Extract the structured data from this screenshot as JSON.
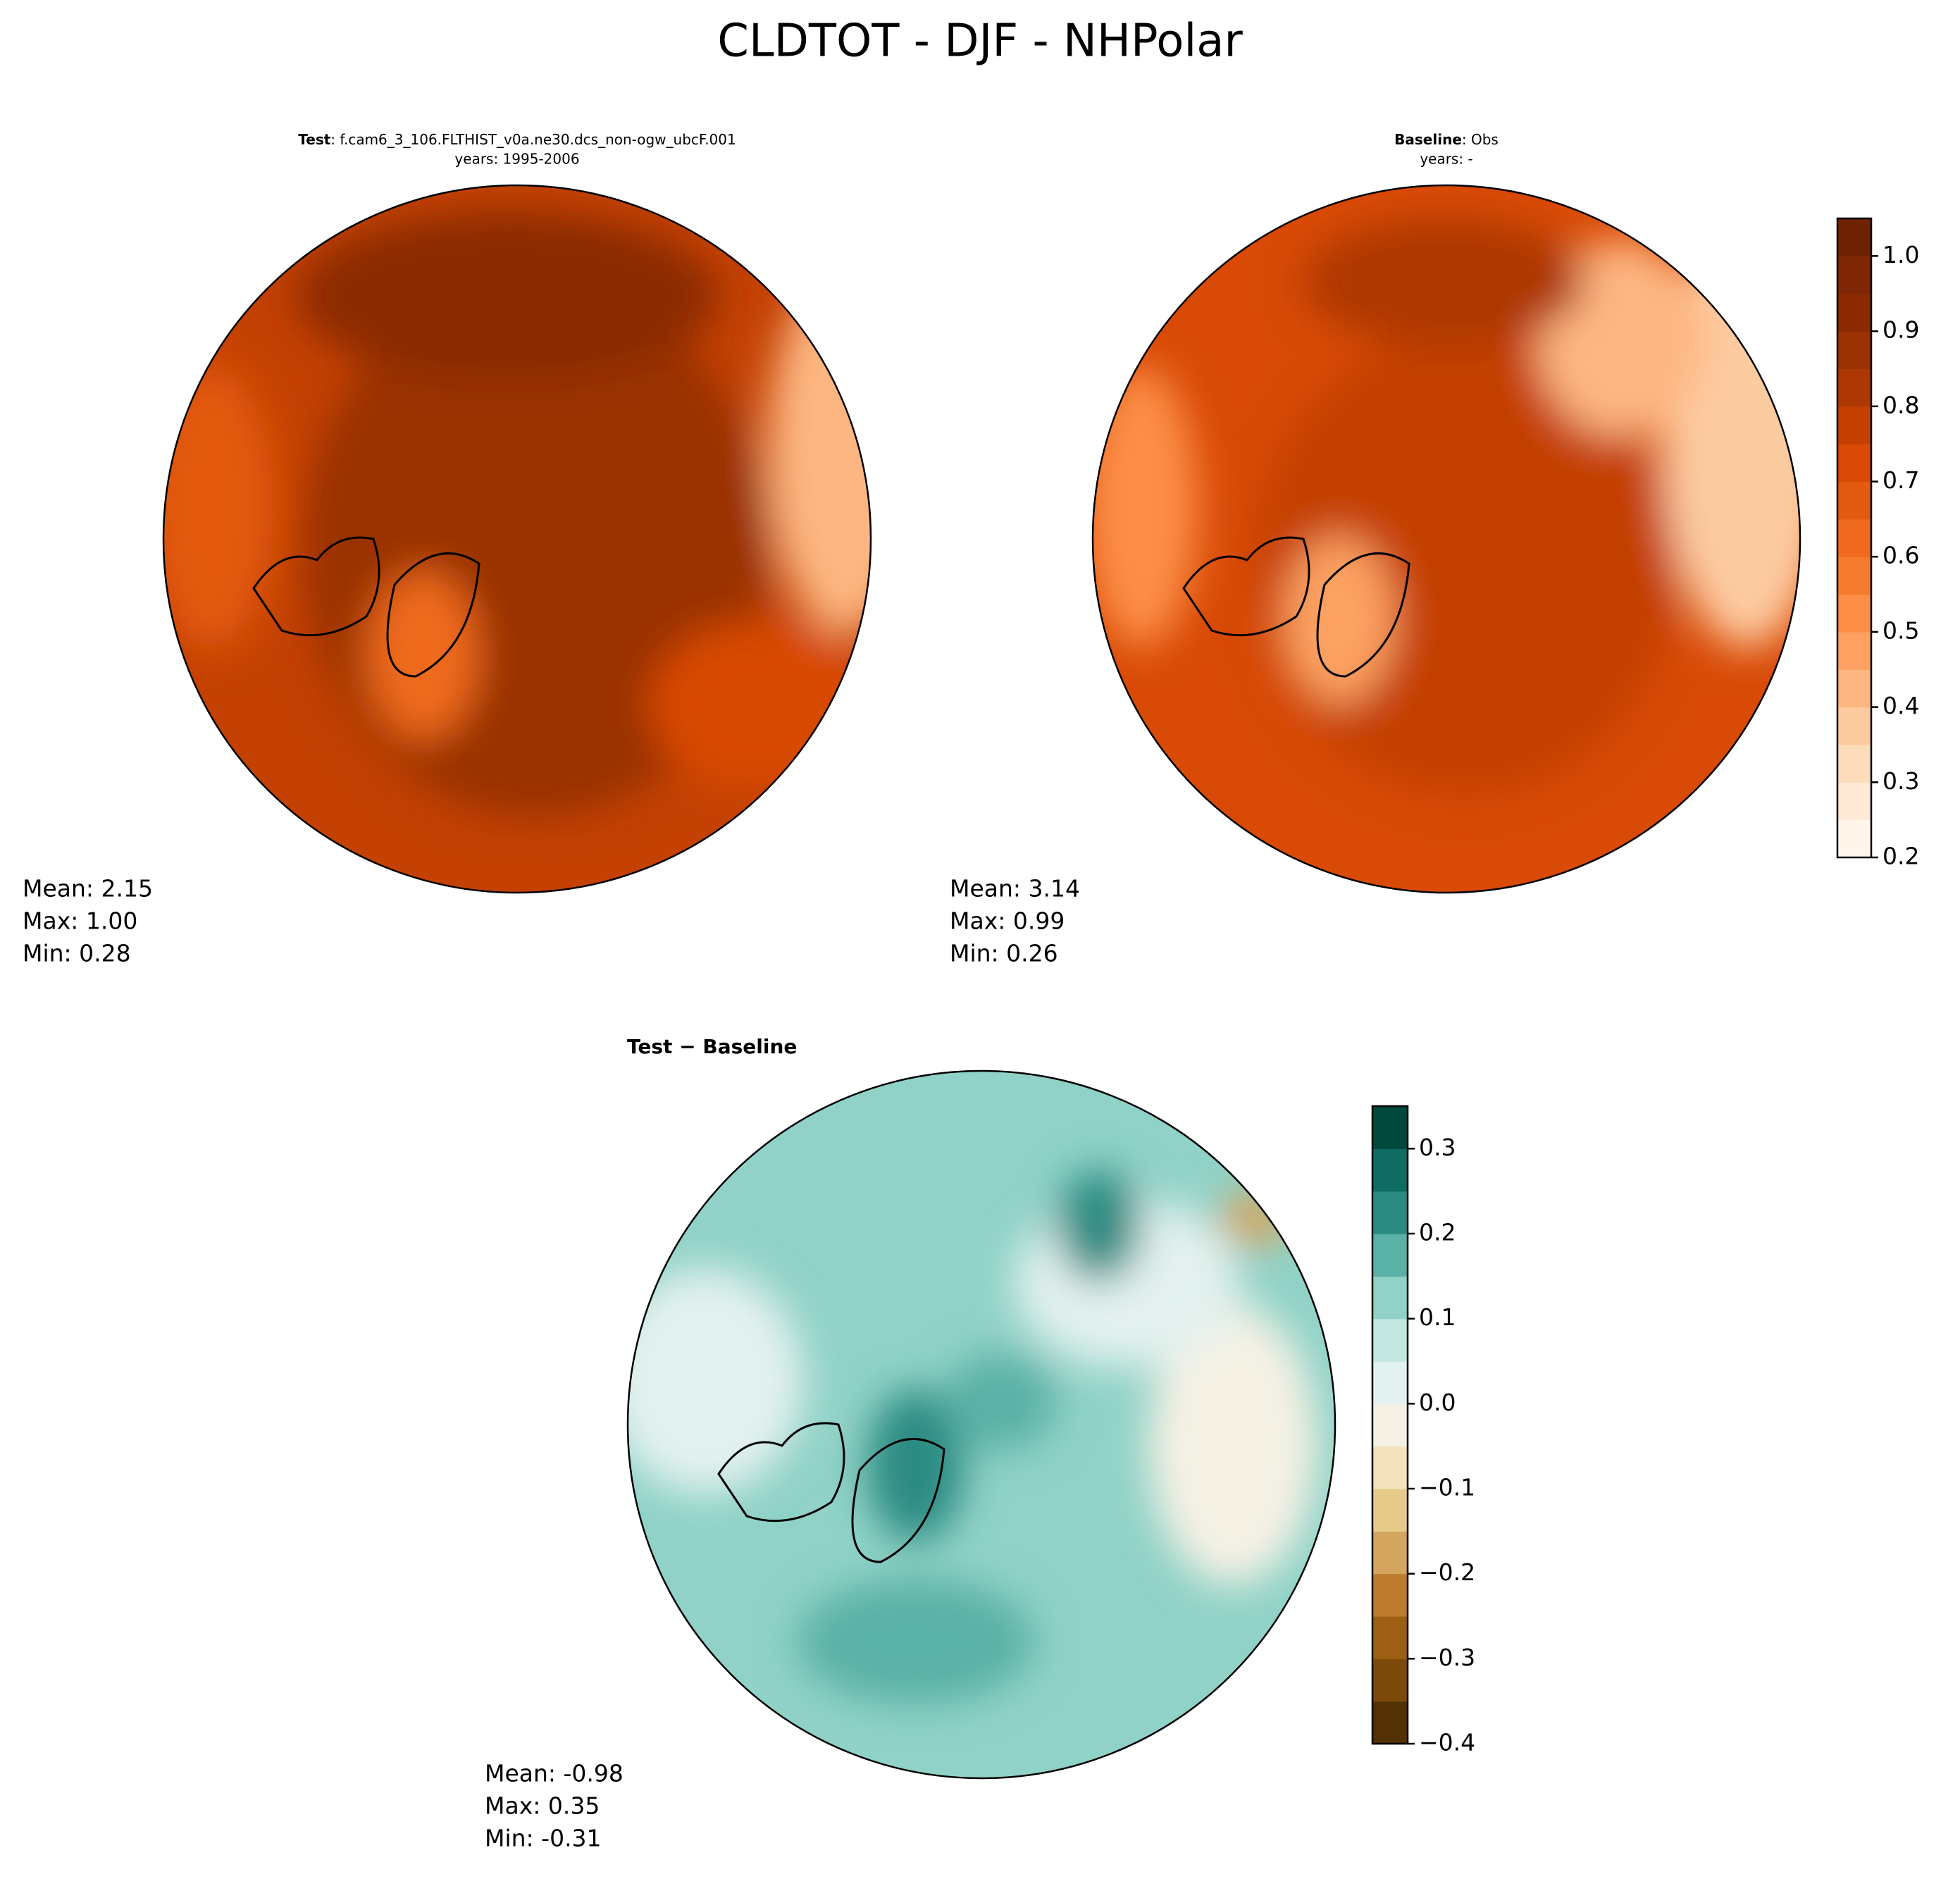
{
  "title": "CLDTOT - DJF - NHPolar",
  "chart_data": [
    {
      "type": "map",
      "title_bold": "Test",
      "title_rest": ": f.cam6_3_106.FLTHIST_v0a.ne30.dcs_non-ogw_ubcF.001",
      "subtitle": "years: 1995-2006",
      "stats": [
        "Mean:  2.15",
        "Max:  1.00",
        "Min:  0.28"
      ]
    },
    {
      "type": "map",
      "title_bold": "Baseline",
      "title_rest": ": Obs",
      "subtitle": "years: -",
      "stats": [
        "Mean:  3.14",
        "Max:  0.99",
        "Min:  0.26"
      ],
      "colorbar": {
        "ylim": [
          0.2,
          1.05
        ],
        "yticks": [
          0.2,
          0.3,
          0.4,
          0.5,
          0.6,
          0.7,
          0.8,
          0.9,
          {
            "value": 1,
            "label": "1.0"
          }
        ],
        "colors": [
          "#fff5eb",
          "#fee9d4",
          "#fddcbc",
          "#fdcba0",
          "#fdb681",
          "#fda262",
          "#fd8e46",
          "#f77b2f",
          "#ef6a1f",
          "#e35a11",
          "#d84a06",
          "#c44103",
          "#ad3803",
          "#9a3103",
          "#8a2b04",
          "#7f2704",
          "#6e2203"
        ]
      }
    },
    {
      "type": "map",
      "title_bold": "Test − Baseline",
      "stats": [
        "Mean: -0.98",
        "Max:  0.35",
        "Min: -0.31"
      ],
      "colorbar": {
        "ylim": [
          -0.4,
          0.35
        ],
        "yticks": [
          {
            "value": -0.4,
            "label": "−0.4"
          },
          {
            "value": -0.3,
            "label": "−0.3"
          },
          {
            "value": -0.2,
            "label": "−0.2"
          },
          {
            "value": -0.1,
            "label": "−0.1"
          },
          {
            "value": 0,
            "label": "0.0"
          },
          0.1,
          0.2,
          0.3
        ],
        "colors": [
          "#543005",
          "#7b4a0b",
          "#9c5f13",
          "#bd7b30",
          "#d4a55e",
          "#e7ca8a",
          "#f3e2bb",
          "#f5f1e4",
          "#e3f1ef",
          "#c1e7e0",
          "#90d2c7",
          "#5ab1a6",
          "#2b8b82",
          "#0e6c62",
          "#01493d"
        ]
      }
    }
  ]
}
